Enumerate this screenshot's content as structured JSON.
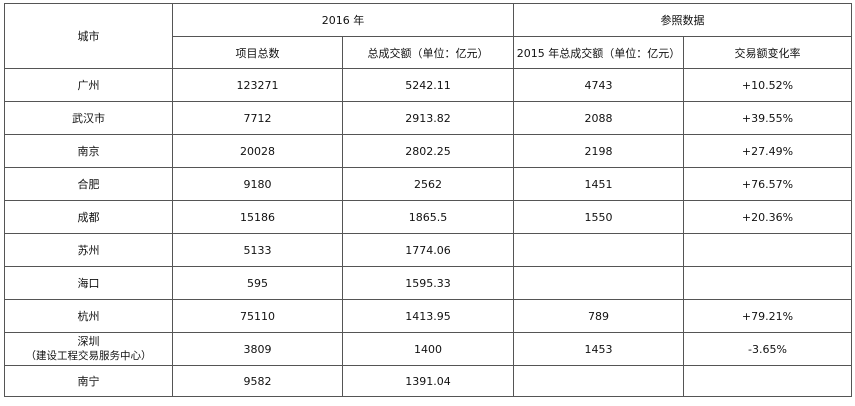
{
  "header": {
    "city": "城市",
    "year_group": "2016 年",
    "reference_group": "参照数据",
    "project_total": "项目总数",
    "total_value": "总成交额（单位：亿元）",
    "value_2015": "2015 年总成交额（单位：亿元）",
    "change_rate": "交易额变化率"
  },
  "rows": [
    {
      "city": "广州",
      "projects": "123271",
      "total": "5242.11",
      "prev": "4743",
      "change": "+10.52%"
    },
    {
      "city": "武汉市",
      "projects": "7712",
      "total": "2913.82",
      "prev": "2088",
      "change": "+39.55%"
    },
    {
      "city": "南京",
      "projects": "20028",
      "total": "2802.25",
      "prev": "2198",
      "change": "+27.49%"
    },
    {
      "city": "合肥",
      "projects": "9180",
      "total": "2562",
      "prev": "1451",
      "change": "+76.57%"
    },
    {
      "city": "成都",
      "projects": "15186",
      "total": "1865.5",
      "prev": "1550",
      "change": "+20.36%"
    },
    {
      "city": "苏州",
      "projects": "5133",
      "total": "1774.06",
      "prev": "",
      "change": ""
    },
    {
      "city": "海口",
      "projects": "595",
      "total": "1595.33",
      "prev": "",
      "change": ""
    },
    {
      "city": "杭州",
      "projects": "75110",
      "total": "1413.95",
      "prev": "789",
      "change": "+79.21%"
    },
    {
      "city": "深圳",
      "city_sub": "（建设工程交易服务中心）",
      "projects": "3809",
      "total": "1400",
      "prev": "1453",
      "change": "-3.65%"
    },
    {
      "city": "南宁",
      "projects": "9582",
      "total": "1391.04",
      "prev": "",
      "change": ""
    }
  ]
}
